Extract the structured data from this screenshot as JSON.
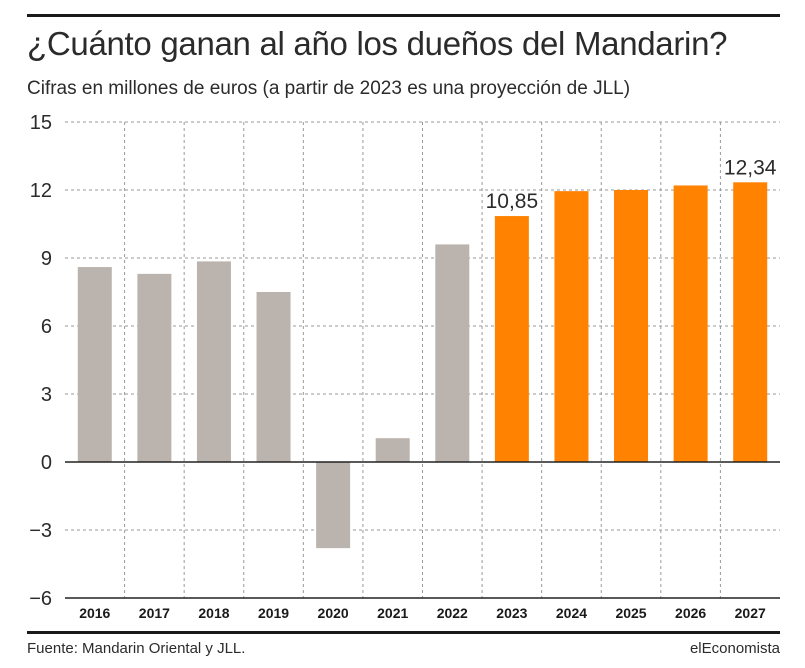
{
  "header": {
    "title": "¿Cuánto ganan al año los dueños del Mandarin?",
    "subtitle": "Cifras en millones de euros (a partir de 2023 es una proyección de JLL)"
  },
  "footer": {
    "source": "Fuente: Mandarin Oriental y JLL.",
    "brand": "elEconomista"
  },
  "colors": {
    "historical": "#bbb4ae",
    "projection": "#ff8200",
    "grid": "#9a9a9a",
    "axis": "#222222"
  },
  "chart_data": {
    "type": "bar",
    "title": "¿Cuánto ganan al año los dueños del Mandarin?",
    "subtitle": "Cifras en millones de euros (a partir de 2023 es una proyección de JLL)",
    "categories": [
      "2016",
      "2017",
      "2018",
      "2019",
      "2020",
      "2021",
      "2022",
      "2023",
      "2024",
      "2025",
      "2026",
      "2027"
    ],
    "values": [
      8.6,
      8.3,
      8.85,
      7.5,
      -3.8,
      1.05,
      9.6,
      10.85,
      11.95,
      12.0,
      12.2,
      12.34
    ],
    "projection_from": "2023",
    "data_labels": [
      {
        "category": "2023",
        "text": "10,85"
      },
      {
        "category": "2027",
        "text": "12,34"
      }
    ],
    "yticks": [
      "15",
      "12",
      "9",
      "6",
      "3",
      "0",
      "−3",
      "−6"
    ],
    "ytick_values": [
      15,
      12,
      9,
      6,
      3,
      0,
      -3,
      -6
    ],
    "ylim": [
      -6,
      15
    ],
    "xlabel": "",
    "ylabel": "",
    "grid": true
  }
}
